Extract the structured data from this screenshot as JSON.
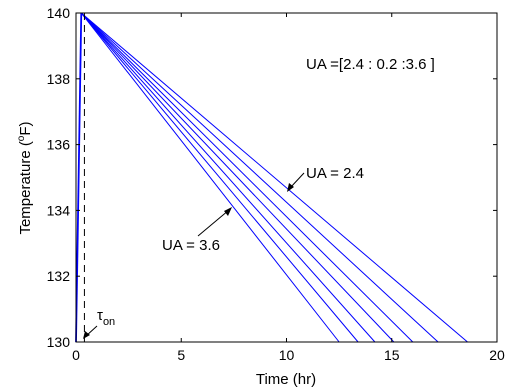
{
  "chart_data": {
    "type": "line",
    "xlabel": "Time (hr)",
    "ylabel_main": "Temperature (",
    "ylabel_sup": "o",
    "ylabel_unit": "F)",
    "xlim": [
      0,
      20
    ],
    "ylim": [
      130,
      140
    ],
    "xticks": [
      0,
      5,
      10,
      15,
      20
    ],
    "yticks": [
      130,
      132,
      134,
      136,
      138,
      140
    ],
    "grid": false,
    "line_color": "#0000ff",
    "heating": {
      "x": [
        0,
        0.25
      ],
      "y": [
        130,
        140
      ]
    },
    "tau_on_x": 0.4,
    "series": [
      {
        "x": [
          0.25,
          12.5
        ],
        "y": [
          140,
          130
        ]
      },
      {
        "x": [
          0.25,
          13.4
        ],
        "y": [
          140,
          130
        ]
      },
      {
        "x": [
          0.25,
          14.2
        ],
        "y": [
          140,
          130
        ]
      },
      {
        "x": [
          0.25,
          15.1
        ],
        "y": [
          140,
          130
        ]
      },
      {
        "x": [
          0.25,
          16.0
        ],
        "y": [
          140,
          130
        ]
      },
      {
        "x": [
          0.25,
          17.2
        ],
        "y": [
          140,
          130
        ]
      },
      {
        "x": [
          0.25,
          18.6
        ],
        "y": [
          140,
          130
        ]
      }
    ],
    "annotations": {
      "range": "UA =[2.4 : 0.2 :3.6 ]",
      "ua_low": "UA = 2.4",
      "ua_high": "UA = 3.6",
      "tau_symbol": "τ",
      "tau_sub": "on"
    }
  }
}
